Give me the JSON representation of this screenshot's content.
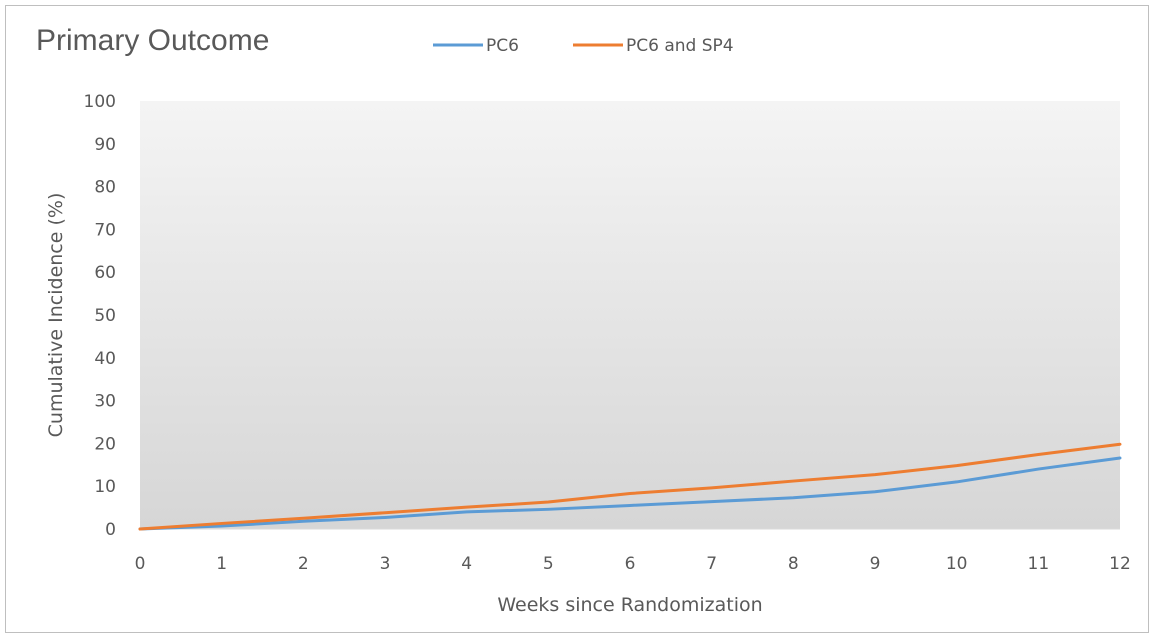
{
  "chart_data": {
    "type": "line",
    "title": "Primary Outcome",
    "xlabel": "Weeks since Randomization",
    "ylabel": "Cumulative Incidence (%)",
    "x": [
      0,
      1,
      2,
      3,
      4,
      5,
      6,
      7,
      8,
      9,
      10,
      11,
      12
    ],
    "xlim": [
      0,
      12
    ],
    "ylim": [
      0,
      100
    ],
    "yticks": [
      0,
      10,
      20,
      30,
      40,
      50,
      60,
      70,
      80,
      90,
      100
    ],
    "grid": false,
    "legend_position": "top",
    "series": [
      {
        "name": "PC6",
        "color": "#5b9bd5",
        "values": [
          0,
          0.7,
          1.8,
          2.7,
          4.0,
          4.6,
          5.5,
          6.4,
          7.3,
          8.7,
          11.0,
          14.0,
          16.6
        ]
      },
      {
        "name": "PC6 and SP4",
        "color": "#ed7d31",
        "values": [
          0,
          1.3,
          2.5,
          3.8,
          5.1,
          6.3,
          8.3,
          9.6,
          11.2,
          12.7,
          14.8,
          17.4,
          19.8
        ]
      }
    ]
  }
}
